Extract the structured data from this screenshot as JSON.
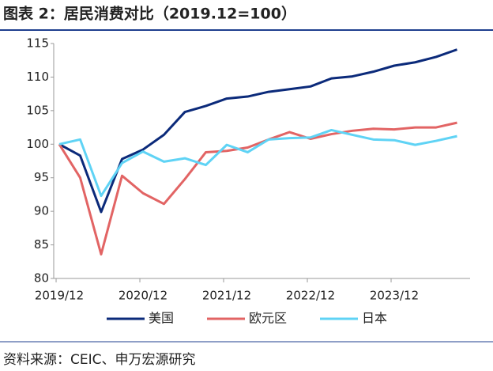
{
  "chart_data": {
    "type": "line",
    "title": "图表 2：居民消费对比（2019.12=100）",
    "source": "资料来源：CEIC、申万宏源研究",
    "categories": [
      "2019/12",
      null,
      null,
      null,
      "2020/12",
      null,
      null,
      null,
      "2021/12",
      null,
      null,
      null,
      "2022/12",
      null,
      null,
      null,
      "2023/12",
      null,
      null,
      null
    ],
    "series": [
      {
        "name": "美国",
        "color": "#0b2a7a",
        "values": [
          100,
          98.3,
          89.9,
          97.8,
          99.2,
          101.4,
          104.8,
          105.7,
          106.8,
          107.1,
          107.8,
          108.2,
          108.6,
          109.8,
          110.1,
          110.8,
          111.7,
          112.2,
          113.0,
          114.1
        ]
      },
      {
        "name": "欧元区",
        "color": "#e26464",
        "values": [
          100,
          95.0,
          83.6,
          95.3,
          92.7,
          91.1,
          94.8,
          98.8,
          99.0,
          99.5,
          100.7,
          101.8,
          100.8,
          101.5,
          102.0,
          102.3,
          102.2,
          102.5,
          102.5,
          103.2
        ]
      },
      {
        "name": "日本",
        "color": "#5fd3f5",
        "values": [
          100,
          100.7,
          92.3,
          97.2,
          98.9,
          97.4,
          97.9,
          96.9,
          99.9,
          98.8,
          100.7,
          100.9,
          101.0,
          102.1,
          101.4,
          100.7,
          100.6,
          99.9,
          100.5,
          101.2
        ]
      }
    ],
    "ylim": [
      80,
      115
    ],
    "yticks": [
      80,
      85,
      90,
      95,
      100,
      105,
      110,
      115
    ],
    "legend": "bottom"
  }
}
